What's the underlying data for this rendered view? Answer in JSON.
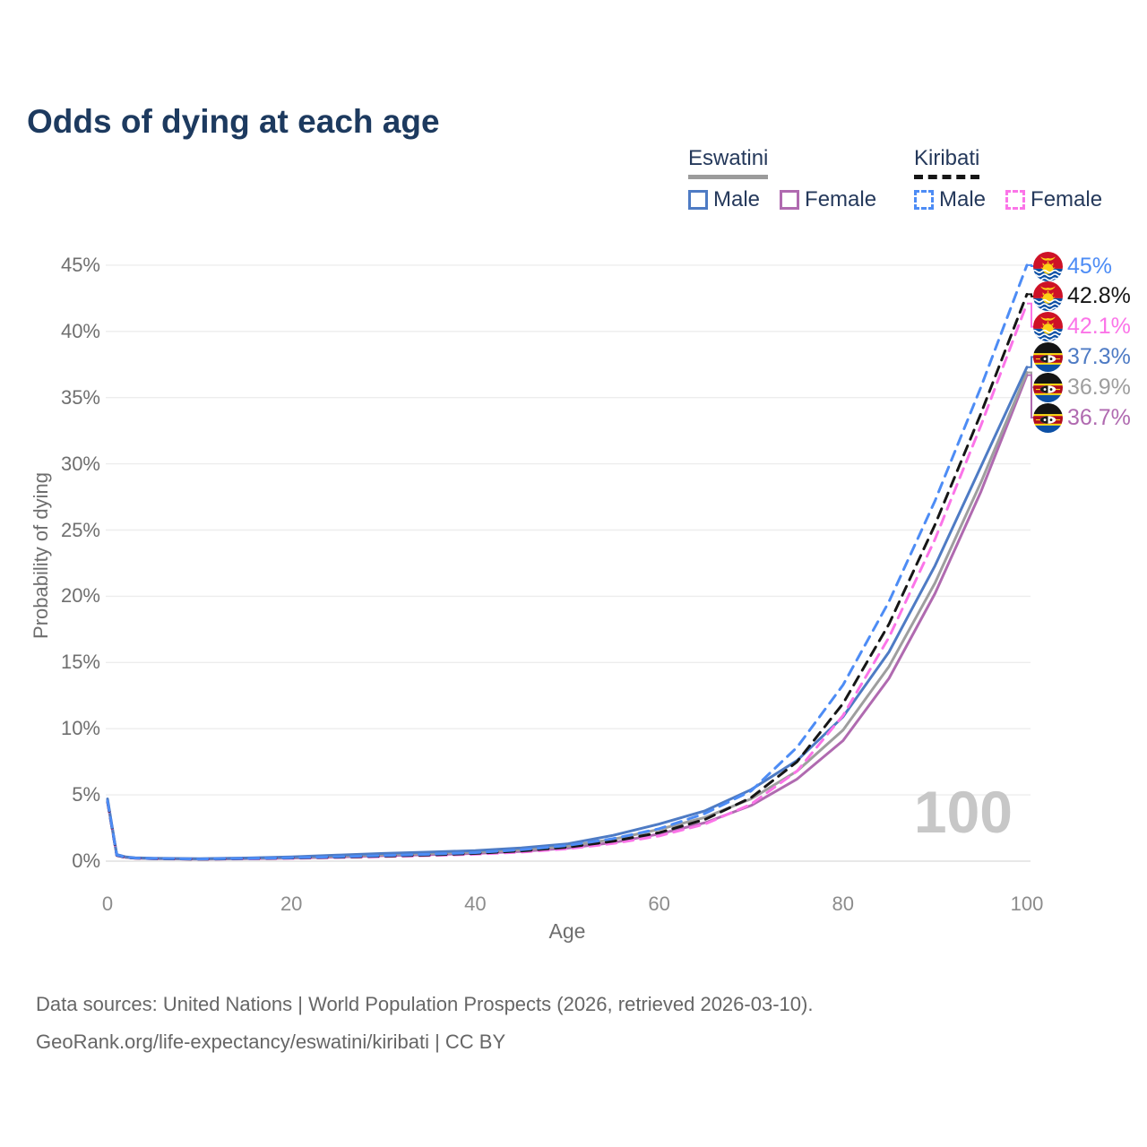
{
  "title": "Odds of dying at each age",
  "legend": {
    "groups": [
      {
        "country": "Eswatini",
        "line_style": "solid",
        "underline_color": "#9b9b9b",
        "items": [
          {
            "label": "Male",
            "color": "#4e7bc4",
            "dashed": false
          },
          {
            "label": "Female",
            "color": "#b06ab0",
            "dashed": false
          }
        ]
      },
      {
        "country": "Kiribati",
        "line_style": "dashed",
        "underline_color": "#161616",
        "items": [
          {
            "label": "Male",
            "color": "#4d8cf5",
            "dashed": true
          },
          {
            "label": "Female",
            "color": "#fb74e8",
            "dashed": true
          }
        ]
      }
    ]
  },
  "chart_data": {
    "type": "line",
    "title": "Odds of dying at each age",
    "xlabel": "Age",
    "ylabel": "Probability of dying",
    "xlim": [
      0,
      100
    ],
    "ylim": [
      0,
      46
    ],
    "grid": true,
    "legend_position": "top-right",
    "x_tick_values": [
      0,
      20,
      40,
      60,
      80,
      100
    ],
    "x_tick_labels": [
      "0",
      "20",
      "40",
      "60",
      "80",
      "100"
    ],
    "y_tick_values": [
      0,
      5,
      10,
      15,
      20,
      25,
      30,
      35,
      40,
      45
    ],
    "y_tick_labels": [
      "0%",
      "5%",
      "10%",
      "15%",
      "20%",
      "25%",
      "30%",
      "35%",
      "40%",
      "45%"
    ],
    "ages": [
      0,
      1,
      2,
      3,
      5,
      10,
      15,
      20,
      25,
      30,
      35,
      40,
      45,
      50,
      55,
      60,
      65,
      70,
      75,
      80,
      85,
      90,
      95,
      100
    ],
    "series": [
      {
        "name": "Kiribati Male",
        "country": "Kiribati",
        "color": "#4d8cf5",
        "dashed": true,
        "values": [
          4.55,
          0.46,
          0.3,
          0.24,
          0.2,
          0.16,
          0.2,
          0.26,
          0.33,
          0.42,
          0.52,
          0.64,
          0.86,
          1.18,
          1.7,
          2.45,
          3.6,
          5.3,
          8.6,
          13.3,
          19.6,
          27.2,
          35.8,
          45.0
        ]
      },
      {
        "name": "Kiribati Both sexes",
        "country": "Kiribati",
        "color": "#161616",
        "dashed": true,
        "values": [
          4.5,
          0.44,
          0.28,
          0.23,
          0.19,
          0.15,
          0.19,
          0.24,
          0.3,
          0.38,
          0.47,
          0.58,
          0.77,
          1.05,
          1.5,
          2.15,
          3.15,
          4.8,
          7.5,
          11.9,
          17.9,
          25.4,
          33.8,
          42.8
        ]
      },
      {
        "name": "Kiribati Female",
        "country": "Kiribati",
        "color": "#fb74e8",
        "dashed": true,
        "values": [
          4.45,
          0.42,
          0.27,
          0.22,
          0.18,
          0.14,
          0.17,
          0.21,
          0.27,
          0.34,
          0.42,
          0.52,
          0.68,
          0.93,
          1.33,
          1.9,
          2.8,
          4.3,
          6.8,
          11.0,
          16.9,
          24.3,
          32.9,
          42.1
        ]
      },
      {
        "name": "Eswatini Male",
        "country": "Eswatini",
        "color": "#4e7bc4",
        "dashed": false,
        "values": [
          4.7,
          0.5,
          0.32,
          0.26,
          0.22,
          0.18,
          0.24,
          0.32,
          0.45,
          0.58,
          0.68,
          0.8,
          1.0,
          1.3,
          1.95,
          2.8,
          3.8,
          5.4,
          7.6,
          10.9,
          15.8,
          22.3,
          29.8,
          37.3
        ]
      },
      {
        "name": "Eswatini Both sexes",
        "country": "Eswatini",
        "color": "#9e9e9e",
        "dashed": false,
        "values": [
          4.6,
          0.47,
          0.3,
          0.24,
          0.2,
          0.17,
          0.21,
          0.27,
          0.38,
          0.49,
          0.58,
          0.68,
          0.86,
          1.12,
          1.65,
          2.4,
          3.3,
          4.7,
          6.8,
          9.9,
          14.7,
          21.0,
          28.6,
          36.9
        ]
      },
      {
        "name": "Eswatini Female",
        "country": "Eswatini",
        "color": "#b06ab0",
        "dashed": false,
        "values": [
          4.5,
          0.44,
          0.28,
          0.23,
          0.19,
          0.15,
          0.18,
          0.23,
          0.31,
          0.41,
          0.49,
          0.58,
          0.74,
          0.98,
          1.4,
          2.05,
          2.9,
          4.2,
          6.2,
          9.1,
          13.8,
          20.2,
          27.9,
          36.7
        ]
      }
    ],
    "end_labels": [
      {
        "series": "Kiribati Male",
        "text": "45%",
        "color": "#4d8cf5",
        "flag": "kiribati"
      },
      {
        "series": "Kiribati Both sexes",
        "text": "42.8%",
        "color": "#161616",
        "flag": "kiribati"
      },
      {
        "series": "Kiribati Female",
        "text": "42.1%",
        "color": "#fb74e8",
        "flag": "kiribati"
      },
      {
        "series": "Eswatini Male",
        "text": "37.3%",
        "color": "#4e7bc4",
        "flag": "eswatini"
      },
      {
        "series": "Eswatini Both sexes",
        "text": "36.9%",
        "color": "#9e9e9e",
        "flag": "eswatini"
      },
      {
        "series": "Eswatini Female",
        "text": "36.7%",
        "color": "#b06ab0",
        "flag": "eswatini"
      }
    ],
    "watermark": "100"
  },
  "footer": {
    "line1": "Data sources: United Nations | World Population Prospects (2026, retrieved 2026-03-10).",
    "line2": "GeoRank.org/life-expectancy/eswatini/kiribati | CC BY"
  }
}
